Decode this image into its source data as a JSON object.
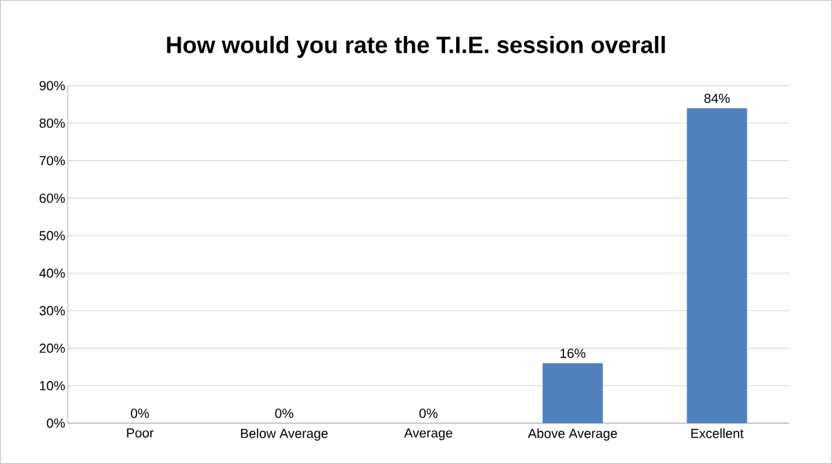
{
  "chart_data": {
    "type": "bar",
    "title": "How would you rate the T.I.E. session overall",
    "categories": [
      "Poor",
      "Below Average",
      "Average",
      "Above Average",
      "Excellent"
    ],
    "values": [
      0,
      0,
      0,
      16,
      84
    ],
    "value_labels": [
      "0%",
      "0%",
      "0%",
      "16%",
      "84%"
    ],
    "color": "#4f81bd",
    "ylim": [
      0,
      90
    ],
    "yticks": [
      {
        "value": 0,
        "label": "0%"
      },
      {
        "value": 10,
        "label": "10%"
      },
      {
        "value": 20,
        "label": "20%"
      },
      {
        "value": 30,
        "label": "30%"
      },
      {
        "value": 40,
        "label": "40%"
      },
      {
        "value": 50,
        "label": "50%"
      },
      {
        "value": 60,
        "label": "60%"
      },
      {
        "value": 70,
        "label": "70%"
      },
      {
        "value": 80,
        "label": "80%"
      },
      {
        "value": 90,
        "label": "90%"
      }
    ],
    "grid": "y"
  }
}
